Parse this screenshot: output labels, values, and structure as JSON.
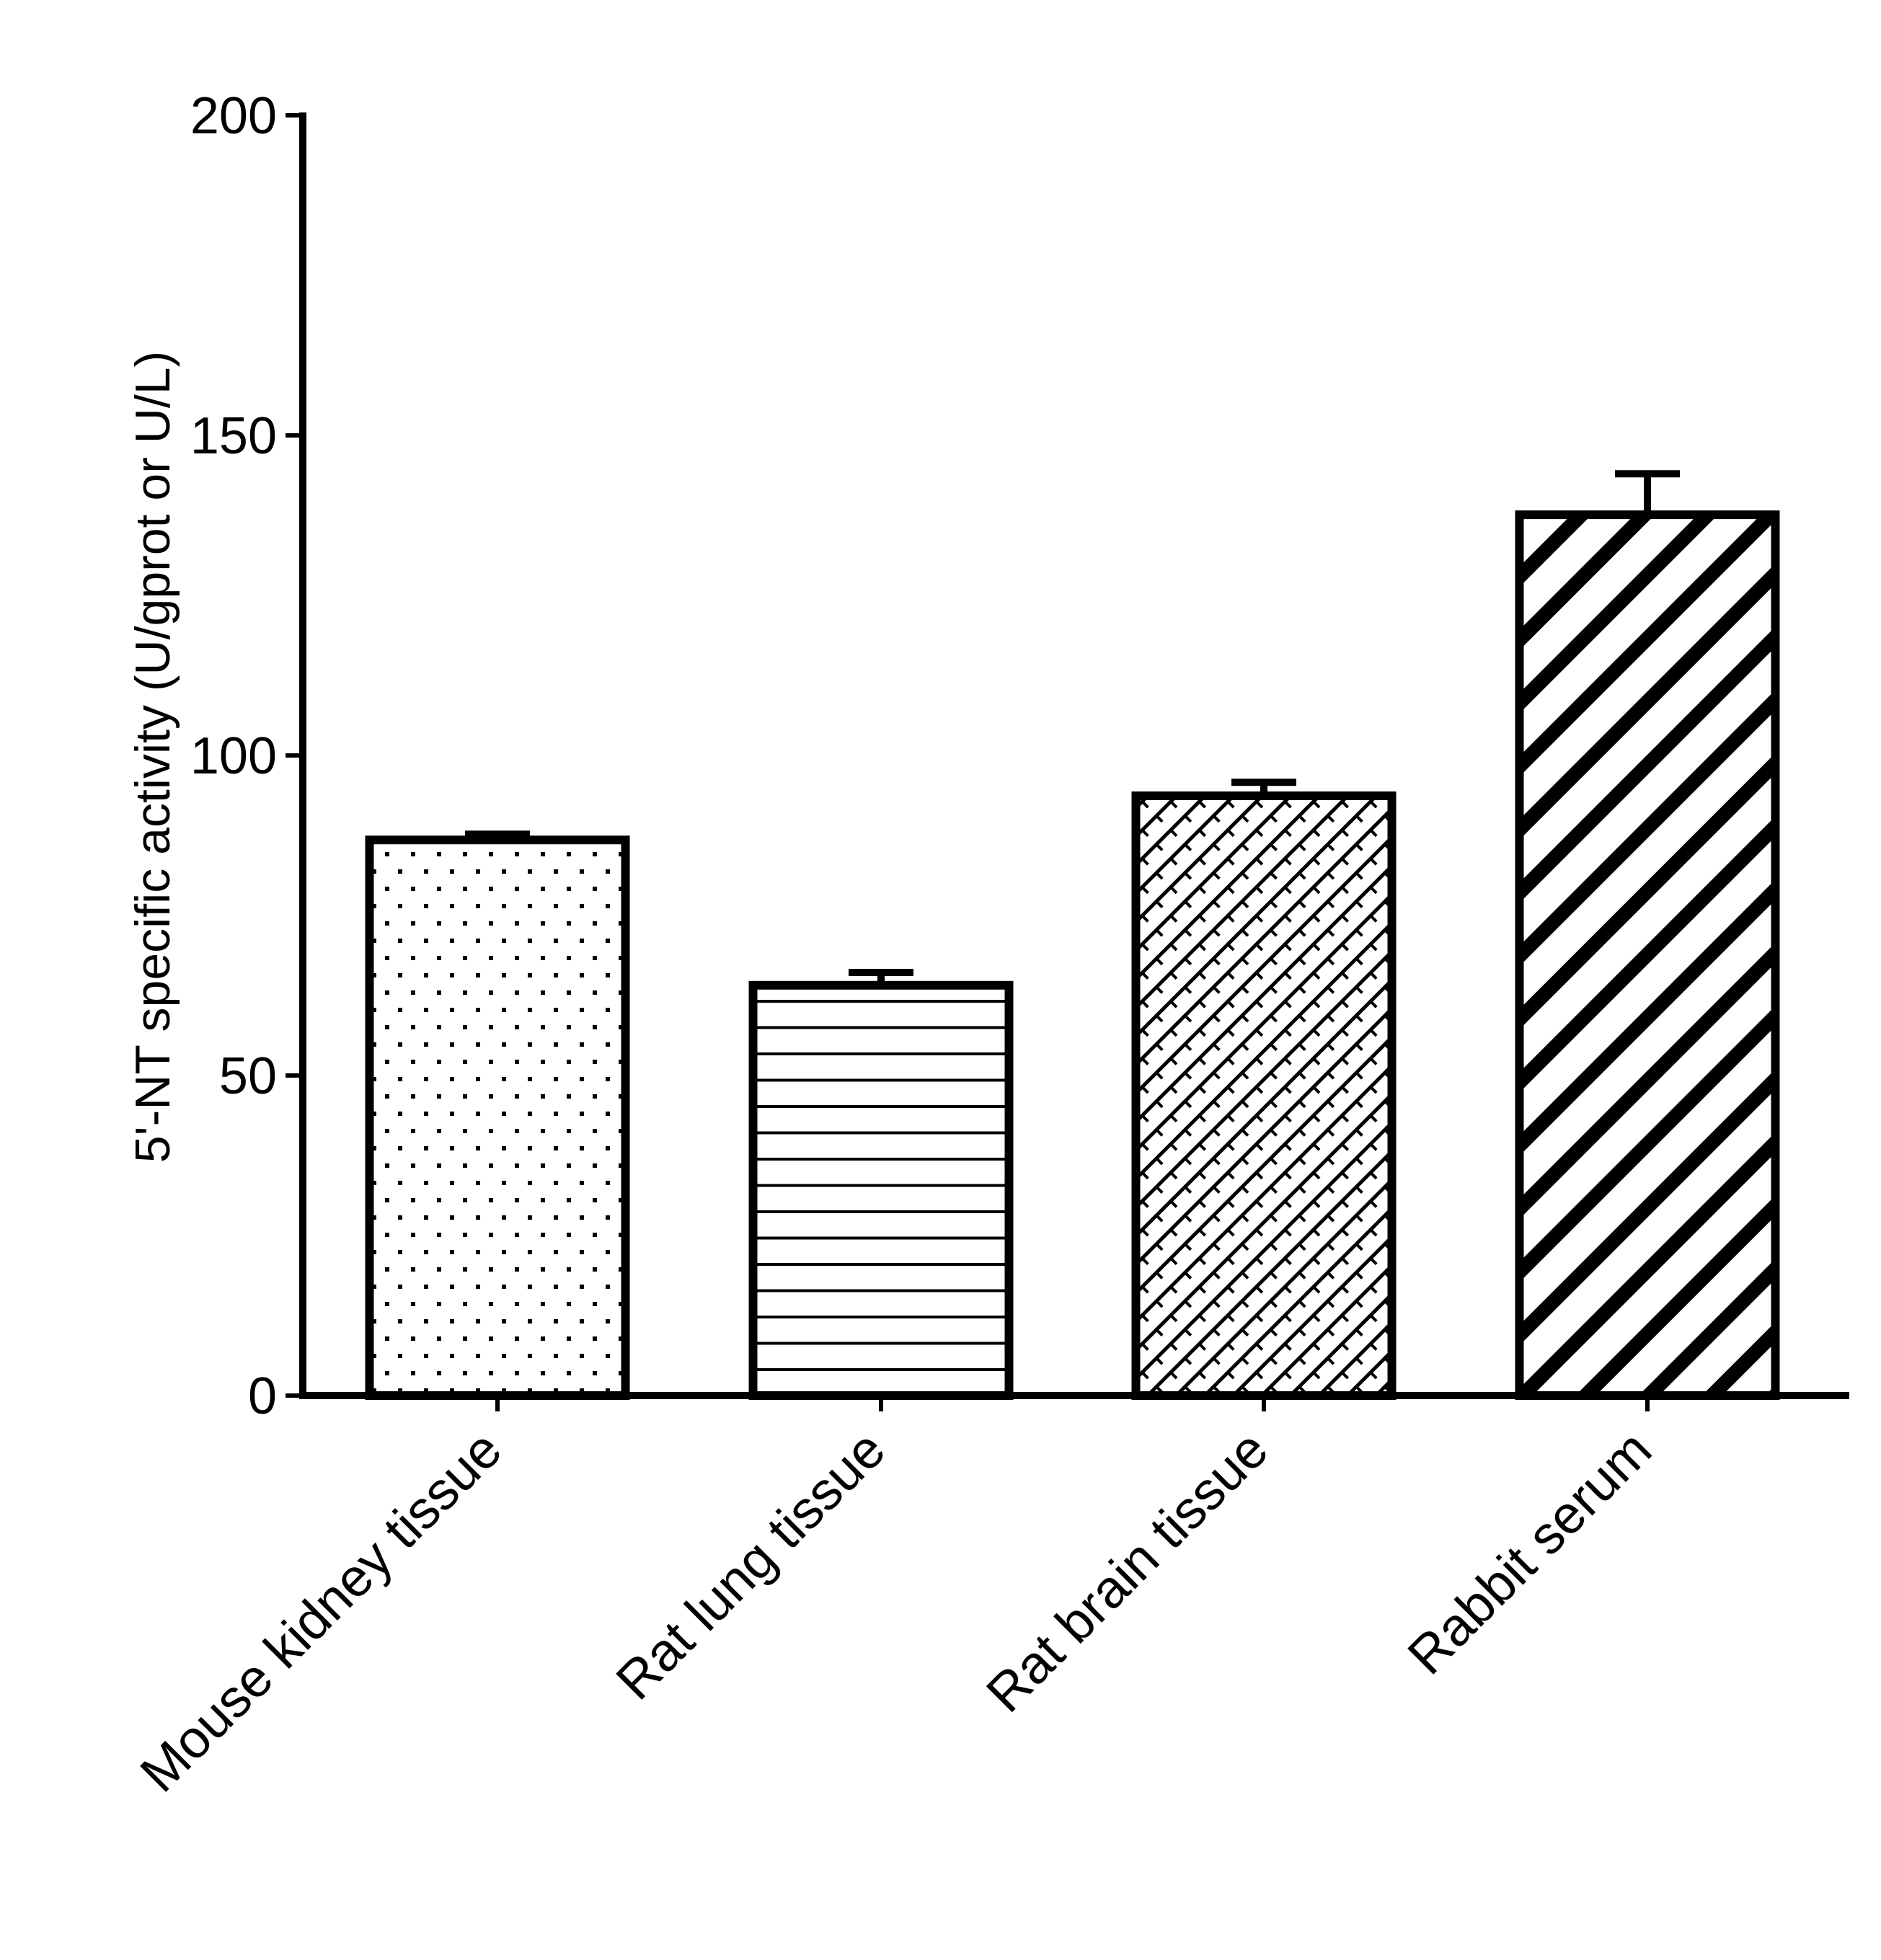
{
  "chart_data": {
    "type": "bar",
    "title": "",
    "xlabel": "",
    "ylabel": "5'-NT specific activity (U/gprot or U/L)",
    "categories": [
      "Mouse kidney tissue",
      "Rat lung tissue",
      "Rat brain tissue",
      "Rabbit serum"
    ],
    "values": [
      86.8,
      64.1,
      93.7,
      137.6
    ],
    "errors": [
      0.9,
      2.0,
      2.1,
      6.4
    ],
    "patterns": [
      "dots",
      "horizontal-lines",
      "crosshatch",
      "diagonal-stripes"
    ],
    "ylim": [
      0,
      200
    ],
    "yticks": [
      "0",
      "50",
      "100",
      "150",
      "200"
    ],
    "grid": false,
    "legend": null
  }
}
